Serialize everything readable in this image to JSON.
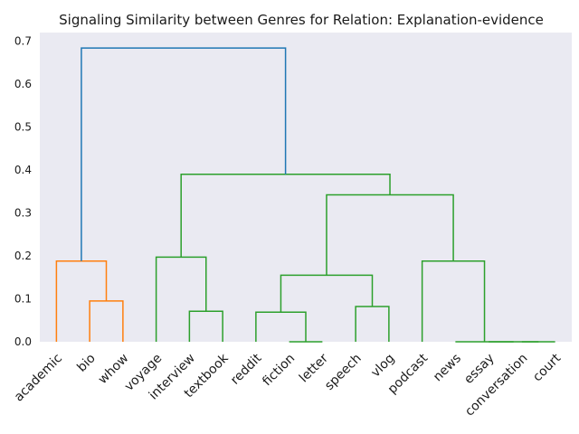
{
  "chart_data": {
    "type": "dendrogram",
    "title": "Signaling Similarity between Genres for Relation: Explanation-evidence",
    "xlabel": "",
    "ylabel": "",
    "ylim": [
      0,
      0.72
    ],
    "yticks": [
      "0.0",
      "0.1",
      "0.2",
      "0.3",
      "0.4",
      "0.5",
      "0.6",
      "0.7"
    ],
    "ytick_values": [
      0.0,
      0.1,
      0.2,
      0.3,
      0.4,
      0.5,
      0.6,
      0.7
    ],
    "grid": false,
    "background_color": "#eaeaf2",
    "leaves": [
      "academic",
      "bio",
      "whow",
      "voyage",
      "interview",
      "textbook",
      "reddit",
      "fiction",
      "letter",
      "speech",
      "vlog",
      "podcast",
      "news",
      "essay",
      "conversation",
      "court"
    ],
    "cluster_colors": {
      "orange": "#ff7f0e",
      "green": "#2ca02c",
      "blue": "#1f77b4"
    },
    "merges": [
      {
        "a": "bio",
        "b": "whow",
        "height": 0.095,
        "color": "orange"
      },
      {
        "a": "academic",
        "b": "c0",
        "height": 0.188,
        "color": "orange"
      },
      {
        "a": "interview",
        "b": "textbook",
        "height": 0.071,
        "color": "green"
      },
      {
        "a": "voyage",
        "b": "c2",
        "height": 0.197,
        "color": "green"
      },
      {
        "a": "fiction",
        "b": "letter",
        "height": 0.0,
        "color": "green"
      },
      {
        "a": "reddit",
        "b": "c4",
        "height": 0.069,
        "color": "green"
      },
      {
        "a": "speech",
        "b": "vlog",
        "height": 0.082,
        "color": "green"
      },
      {
        "a": "c5",
        "b": "c6",
        "height": 0.155,
        "color": "green"
      },
      {
        "a": "conversation",
        "b": "court",
        "height": 0.0,
        "color": "green"
      },
      {
        "a": "essay",
        "b": "c8",
        "height": 0.0,
        "color": "green"
      },
      {
        "a": "news",
        "b": "c9",
        "height": 0.0,
        "color": "green"
      },
      {
        "a": "podcast",
        "b": "c10",
        "height": 0.188,
        "color": "green"
      },
      {
        "a": "c7",
        "b": "c11",
        "height": 0.342,
        "color": "green"
      },
      {
        "a": "c3",
        "b": "c12",
        "height": 0.39,
        "color": "green"
      },
      {
        "a": "c1",
        "b": "c13",
        "height": 0.684,
        "color": "blue"
      }
    ]
  }
}
